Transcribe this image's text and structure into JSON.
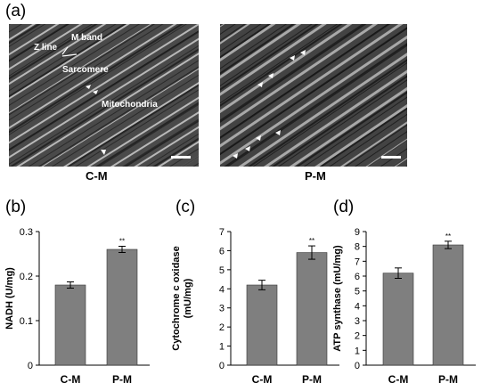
{
  "panel_labels": [
    "(a)",
    "(b)",
    "(c)",
    "(d)"
  ],
  "micrographs": [
    {
      "caption": "C-M",
      "annotations": [
        "M band",
        "Z line",
        "Sarcomere",
        "Mitochondria"
      ]
    },
    {
      "caption": "P-M",
      "annotations": []
    }
  ],
  "chart_data": [
    {
      "type": "bar",
      "title": "",
      "xlabel": "",
      "ylabel": "NADH (U/mg)",
      "categories": [
        "C-M",
        "P-M"
      ],
      "values": [
        0.18,
        0.26
      ],
      "errors": [
        0.007,
        0.007
      ],
      "significance": [
        "",
        "**"
      ],
      "ylim": [
        0,
        0.3
      ],
      "yticks": [
        "0",
        "0.1",
        "0.2",
        "0.3"
      ],
      "bar_color": "#7f7f7f"
    },
    {
      "type": "bar",
      "title": "",
      "xlabel": "",
      "ylabel": "Cytochrome c oxidase (mU/mg)",
      "ylabel_lines": [
        "Cytochrome c oxidase",
        "(mU/mg)"
      ],
      "categories": [
        "C-M",
        "P-M"
      ],
      "values": [
        4.2,
        5.9
      ],
      "errors": [
        0.25,
        0.35
      ],
      "significance": [
        "",
        "**"
      ],
      "ylim": [
        0,
        7
      ],
      "yticks": [
        "0",
        "1",
        "2",
        "3",
        "4",
        "5",
        "6",
        "7"
      ],
      "bar_color": "#7f7f7f"
    },
    {
      "type": "bar",
      "title": "",
      "xlabel": "",
      "ylabel": "ATP synthase (mU/mg)",
      "categories": [
        "C-M",
        "P-M"
      ],
      "values": [
        6.2,
        8.1
      ],
      "errors": [
        0.35,
        0.25
      ],
      "significance": [
        "",
        "**"
      ],
      "ylim": [
        0,
        9
      ],
      "yticks": [
        "0",
        "1",
        "2",
        "3",
        "4",
        "5",
        "6",
        "7",
        "8",
        "9"
      ],
      "bar_color": "#7f7f7f"
    }
  ]
}
